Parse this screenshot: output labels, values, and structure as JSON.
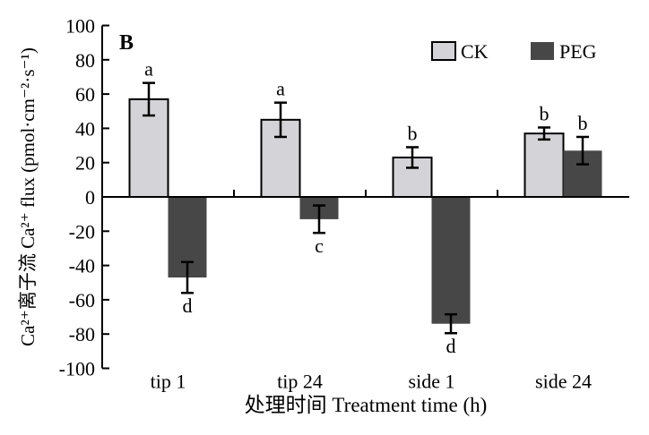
{
  "chart_data": {
    "type": "bar",
    "panel_label": "B",
    "xlabel": "处理时间 Treatment time (h)",
    "ylabel": "Ca²⁺离子流 Ca²⁺ flux (pmol·cm⁻²·s⁻¹)",
    "ylim": [
      -100,
      100
    ],
    "yticks": [
      100,
      80,
      60,
      40,
      20,
      0,
      -20,
      -40,
      -60,
      -80,
      -100
    ],
    "grid": false,
    "legend_position": "top-right",
    "categories": [
      "tip 1",
      "tip 24",
      "side 1",
      "side 24"
    ],
    "series": [
      {
        "name": "CK",
        "color": "#d4d4d8",
        "values": [
          57,
          45,
          23,
          37
        ],
        "errors": [
          9.5,
          10,
          6,
          3.5
        ],
        "letters": [
          "a",
          "a",
          "b",
          "b"
        ]
      },
      {
        "name": "PEG",
        "color": "#474747",
        "values": [
          -47,
          -13,
          -74,
          27
        ],
        "errors": [
          9,
          8,
          5.5,
          8
        ],
        "letters": [
          "d",
          "c",
          "d",
          "b"
        ]
      }
    ]
  }
}
